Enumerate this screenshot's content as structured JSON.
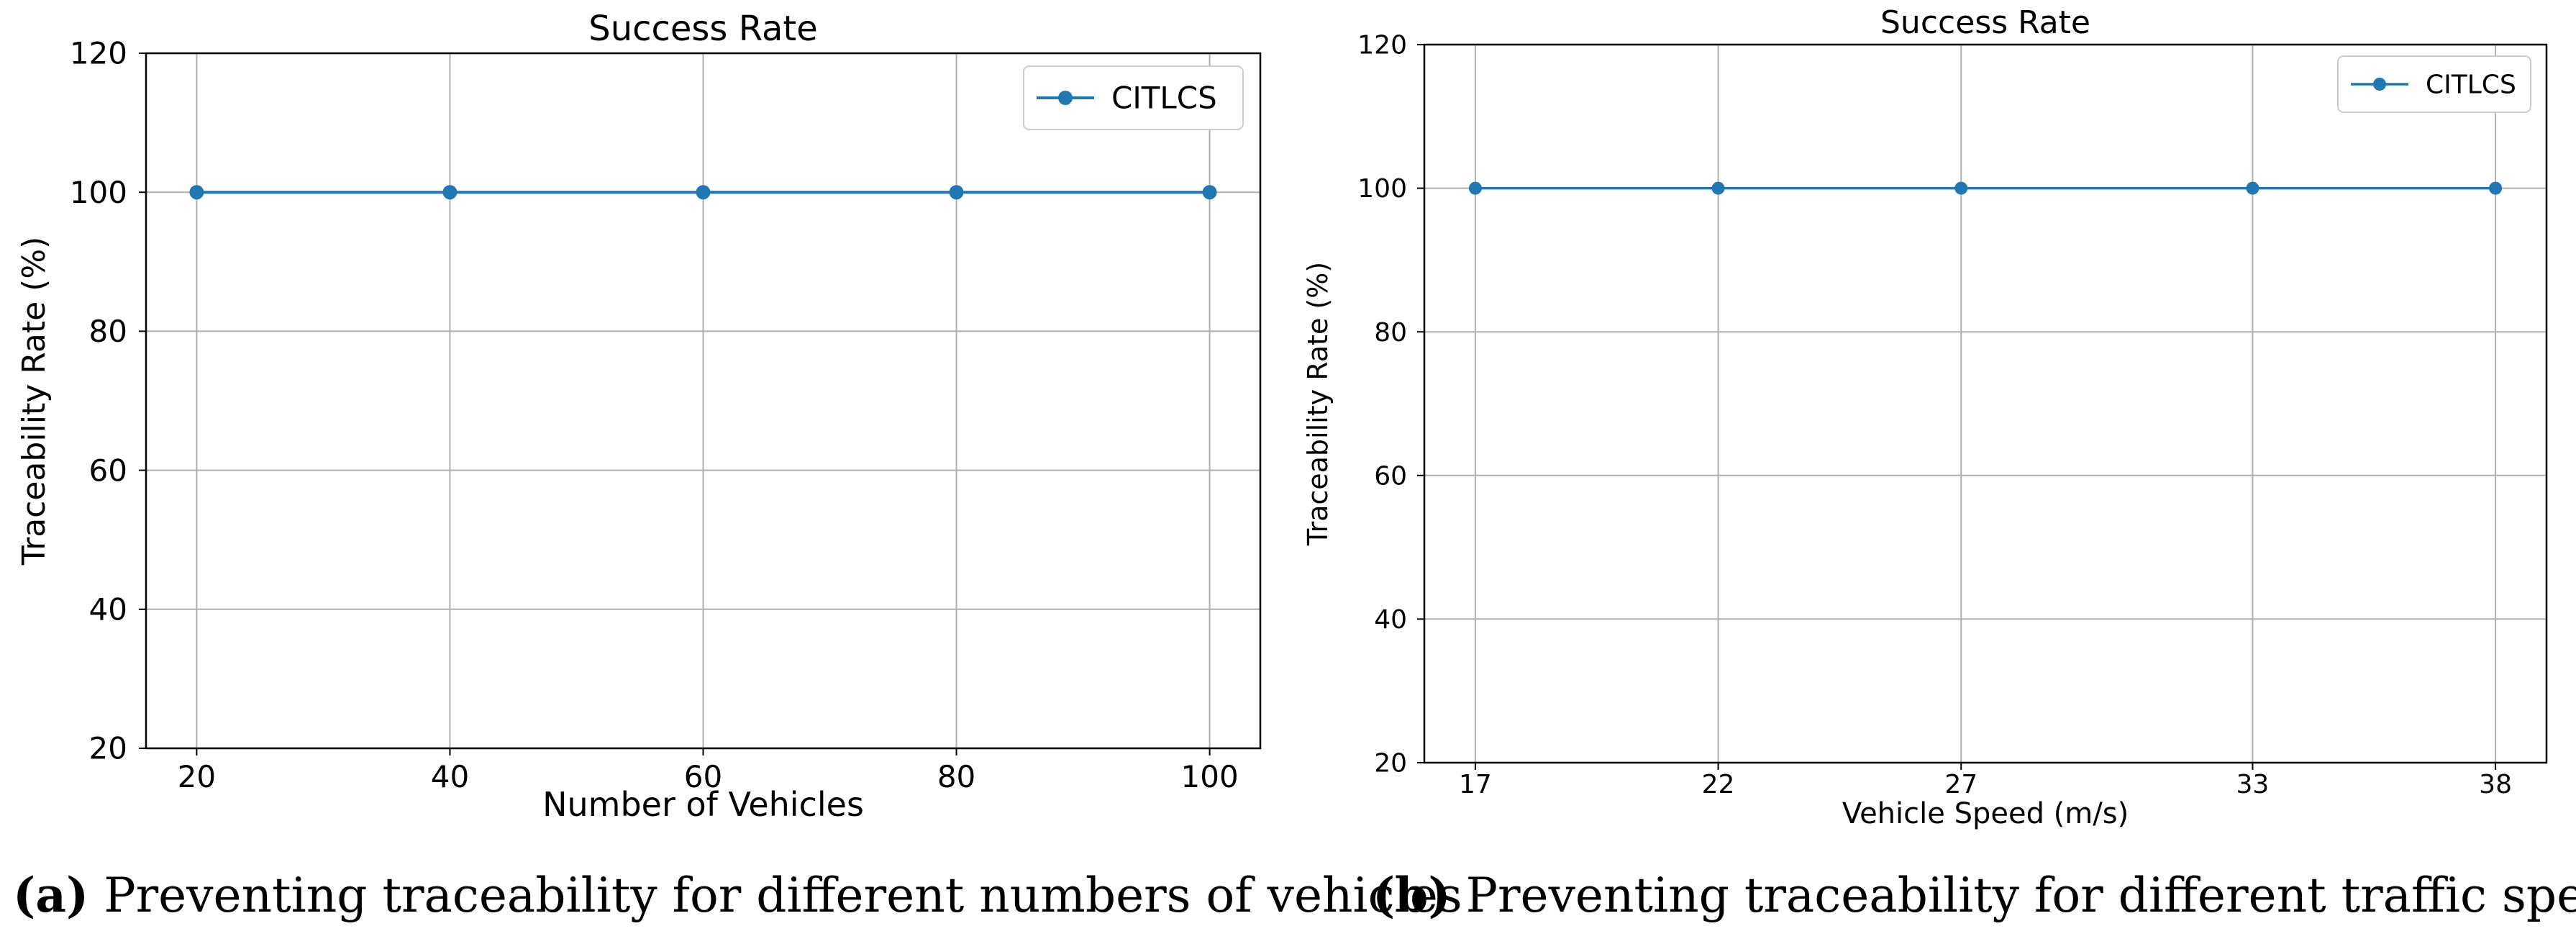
{
  "colors": {
    "series": "#1f77b4",
    "grid": "#b0b0b0",
    "axes": "#000000",
    "legend_border": "#cccccc"
  },
  "chart_data": [
    {
      "type": "line",
      "title": "Success Rate",
      "xlabel": "Number of Vehicles",
      "ylabel": "Traceability Rate (%)",
      "x": [
        20,
        40,
        60,
        80,
        100
      ],
      "x_tick_labels": [
        "20",
        "40",
        "60",
        "80",
        "100"
      ],
      "y_ticks": [
        20,
        40,
        60,
        80,
        100,
        120
      ],
      "ylim": [
        20,
        120
      ],
      "grid": true,
      "legend": "top-right",
      "series": [
        {
          "name": "CITLCS",
          "values": [
            100,
            100,
            100,
            100,
            100
          ]
        }
      ]
    },
    {
      "type": "line",
      "title": "Success Rate",
      "xlabel": "Vehicle Speed (m/s)",
      "ylabel": "Traceability Rate (%)",
      "x": [
        17,
        22,
        27,
        33,
        38
      ],
      "x_tick_labels": [
        "17",
        "22",
        "27",
        "33",
        "38"
      ],
      "y_ticks": [
        20,
        40,
        60,
        80,
        100,
        120
      ],
      "ylim": [
        20,
        120
      ],
      "grid": true,
      "legend": "top-right",
      "series": [
        {
          "name": "CITLCS",
          "values": [
            100,
            100,
            100,
            100,
            100
          ]
        }
      ]
    }
  ],
  "captions": [
    {
      "label": "(a)",
      "text": "Preventing traceability for different numbers of vehicles"
    },
    {
      "label": "(b)",
      "text": "Preventing traceability for different traffic speeds"
    }
  ]
}
